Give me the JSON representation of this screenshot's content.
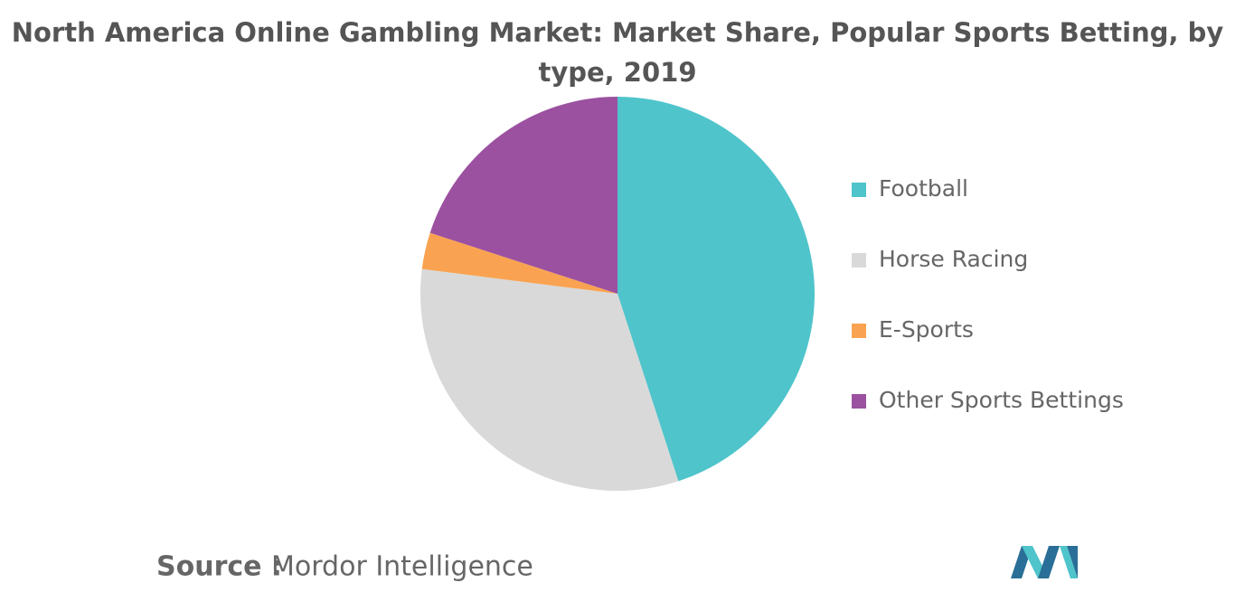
{
  "chart_data": {
    "type": "pie",
    "title": "North America Online Gambling Market: Market Share, Popular Sports Betting, by type, 2019",
    "categories": [
      "Football",
      "Horse Racing",
      "E-Sports",
      "Other Sports Bettings"
    ],
    "values": [
      45,
      32,
      3,
      20
    ],
    "colors": [
      "#4fc4cb",
      "#d9d9d9",
      "#f9a352",
      "#9b51a0"
    ],
    "legend": "right",
    "source_label": "Source :",
    "source": "Mordor Intelligence"
  }
}
